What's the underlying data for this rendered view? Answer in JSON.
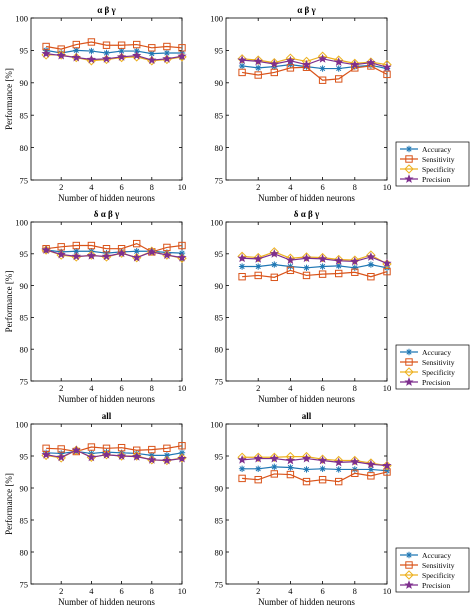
{
  "figure": {
    "colors": {
      "accuracy": "#1f77b4",
      "sensitivity": "#d95319",
      "specificity": "#edb120",
      "precision": "#7e2f8e"
    }
  },
  "chart_data": [
    {
      "type": "line",
      "panel": "left",
      "row": 0,
      "title": "α β γ",
      "xlabel": "Number of hidden neurons",
      "ylabel": "Performance [%]",
      "x": [
        1,
        2,
        3,
        4,
        5,
        6,
        7,
        8,
        9,
        10
      ],
      "xticks": [
        "2",
        "4",
        "6",
        "8",
        "10"
      ],
      "xtick_values": [
        2,
        4,
        6,
        8,
        10
      ],
      "yticks": [
        "75",
        "80",
        "85",
        "90",
        "95",
        "100"
      ],
      "ytick_values": [
        75,
        80,
        85,
        90,
        95,
        100
      ],
      "xlim": [
        0,
        10
      ],
      "ylim": [
        75,
        100
      ],
      "grid": false,
      "legend": false,
      "series": [
        {
          "name": "Accuracy",
          "key": "accuracy",
          "marker": "asterisk",
          "values": [
            95.0,
            94.6,
            95.0,
            94.9,
            94.6,
            94.9,
            94.9,
            94.5,
            94.6,
            94.6
          ]
        },
        {
          "name": "Sensitivity",
          "key": "sensitivity",
          "marker": "square",
          "values": [
            95.6,
            95.2,
            95.9,
            96.3,
            95.8,
            95.8,
            95.9,
            95.4,
            95.6,
            95.4
          ]
        },
        {
          "name": "Specificity",
          "key": "specificity",
          "marker": "diamond",
          "values": [
            94.3,
            94.3,
            93.9,
            93.4,
            93.6,
            93.9,
            94.0,
            93.4,
            93.6,
            94.0
          ]
        },
        {
          "name": "Precision",
          "key": "precision",
          "marker": "star",
          "values": [
            94.5,
            94.2,
            93.9,
            93.6,
            93.7,
            94.0,
            94.2,
            93.5,
            93.7,
            94.1
          ]
        }
      ]
    },
    {
      "type": "line",
      "panel": "right",
      "row": 0,
      "title": "α β γ",
      "xlabel": "Number of hidden neurons",
      "ylabel": "",
      "x": [
        1,
        2,
        3,
        4,
        5,
        6,
        7,
        8,
        9,
        10
      ],
      "xticks": [
        "2",
        "4",
        "6",
        "8",
        "10"
      ],
      "xtick_values": [
        2,
        4,
        6,
        8,
        10
      ],
      "yticks": [
        "75",
        "80",
        "85",
        "90",
        "95",
        "100"
      ],
      "ytick_values": [
        75,
        80,
        85,
        90,
        95,
        100
      ],
      "xlim": [
        0,
        10
      ],
      "ylim": [
        75,
        100
      ],
      "grid": false,
      "legend": true,
      "legend_position": "right",
      "series": [
        {
          "name": "Accuracy",
          "key": "accuracy",
          "marker": "asterisk",
          "values": [
            92.6,
            92.3,
            92.5,
            92.8,
            92.5,
            92.2,
            92.2,
            92.5,
            92.7,
            92.2
          ]
        },
        {
          "name": "Sensitivity",
          "key": "sensitivity",
          "marker": "square",
          "values": [
            91.6,
            91.2,
            91.6,
            92.3,
            92.4,
            90.4,
            90.6,
            92.3,
            92.6,
            91.3
          ]
        },
        {
          "name": "Specificity",
          "key": "specificity",
          "marker": "diamond",
          "values": [
            93.7,
            93.5,
            93.1,
            93.8,
            93.3,
            94.1,
            93.5,
            93.0,
            93.2,
            92.8
          ]
        },
        {
          "name": "Precision",
          "key": "precision",
          "marker": "star",
          "values": [
            93.5,
            93.3,
            92.9,
            93.4,
            92.8,
            93.7,
            93.2,
            92.8,
            93.1,
            92.4
          ]
        }
      ]
    },
    {
      "type": "line",
      "panel": "left",
      "row": 1,
      "title": "δ α β γ",
      "xlabel": "Number of hidden neurons",
      "ylabel": "Performance [%]",
      "x": [
        1,
        2,
        3,
        4,
        5,
        6,
        7,
        8,
        9,
        10
      ],
      "xticks": [
        "2",
        "4",
        "6",
        "8",
        "10"
      ],
      "xtick_values": [
        2,
        4,
        6,
        8,
        10
      ],
      "yticks": [
        "75",
        "80",
        "85",
        "90",
        "95",
        "100"
      ],
      "ytick_values": [
        75,
        80,
        85,
        90,
        95,
        100
      ],
      "xlim": [
        0,
        10
      ],
      "ylim": [
        75,
        100
      ],
      "grid": false,
      "legend": false,
      "series": [
        {
          "name": "Accuracy",
          "key": "accuracy",
          "marker": "asterisk",
          "values": [
            95.6,
            95.3,
            95.4,
            95.4,
            95.1,
            95.3,
            95.4,
            95.4,
            95.2,
            95.1
          ]
        },
        {
          "name": "Sensitivity",
          "key": "sensitivity",
          "marker": "square",
          "values": [
            95.8,
            96.1,
            96.3,
            96.3,
            95.8,
            95.8,
            96.6,
            95.3,
            96.0,
            96.3
          ]
        },
        {
          "name": "Specificity",
          "key": "specificity",
          "marker": "diamond",
          "values": [
            95.6,
            94.8,
            94.5,
            94.8,
            94.5,
            95.1,
            94.4,
            95.4,
            94.8,
            94.3
          ]
        },
        {
          "name": "Precision",
          "key": "precision",
          "marker": "star",
          "values": [
            95.6,
            94.9,
            94.6,
            94.7,
            94.6,
            95.1,
            94.4,
            95.3,
            94.8,
            94.4
          ]
        }
      ]
    },
    {
      "type": "line",
      "panel": "right",
      "row": 1,
      "title": "δ α β γ",
      "xlabel": "Number of hidden neurons",
      "ylabel": "",
      "x": [
        1,
        2,
        3,
        4,
        5,
        6,
        7,
        8,
        9,
        10
      ],
      "xticks": [
        "2",
        "4",
        "6",
        "8",
        "10"
      ],
      "xtick_values": [
        2,
        4,
        6,
        8,
        10
      ],
      "yticks": [
        "75",
        "80",
        "85",
        "90",
        "95",
        "100"
      ],
      "ytick_values": [
        75,
        80,
        85,
        90,
        95,
        100
      ],
      "xlim": [
        0,
        10
      ],
      "ylim": [
        75,
        100
      ],
      "grid": false,
      "legend": true,
      "legend_position": "right",
      "series": [
        {
          "name": "Accuracy",
          "key": "accuracy",
          "marker": "asterisk",
          "values": [
            93.0,
            93.0,
            93.3,
            93.0,
            92.8,
            93.0,
            93.1,
            92.8,
            93.3,
            92.8
          ]
        },
        {
          "name": "Sensitivity",
          "key": "sensitivity",
          "marker": "square",
          "values": [
            91.4,
            91.6,
            91.3,
            92.4,
            91.6,
            91.8,
            91.9,
            92.1,
            91.4,
            92.2
          ]
        },
        {
          "name": "Specificity",
          "key": "specificity",
          "marker": "diamond",
          "values": [
            94.6,
            94.4,
            95.3,
            94.3,
            94.5,
            94.4,
            94.1,
            94.0,
            94.8,
            93.4
          ]
        },
        {
          "name": "Precision",
          "key": "precision",
          "marker": "star",
          "values": [
            94.3,
            94.2,
            95.0,
            94.0,
            94.3,
            94.2,
            93.9,
            93.8,
            94.5,
            93.5
          ]
        }
      ]
    },
    {
      "type": "line",
      "panel": "left",
      "row": 2,
      "title": "all",
      "xlabel": "Number of hidden neurons",
      "ylabel": "Performance [%]",
      "x": [
        1,
        2,
        3,
        4,
        5,
        6,
        7,
        8,
        9,
        10
      ],
      "xticks": [
        "2",
        "4",
        "6",
        "8",
        "10"
      ],
      "xtick_values": [
        2,
        4,
        6,
        8,
        10
      ],
      "yticks": [
        "75",
        "80",
        "85",
        "90",
        "95",
        "100"
      ],
      "ytick_values": [
        75,
        80,
        85,
        90,
        95,
        100
      ],
      "xlim": [
        0,
        10
      ],
      "ylim": [
        75,
        100
      ],
      "grid": false,
      "legend": false,
      "series": [
        {
          "name": "Accuracy",
          "key": "accuracy",
          "marker": "asterisk",
          "values": [
            95.5,
            95.4,
            95.7,
            95.4,
            95.6,
            95.5,
            95.4,
            95.1,
            95.1,
            95.5
          ]
        },
        {
          "name": "Sensitivity",
          "key": "sensitivity",
          "marker": "square",
          "values": [
            96.2,
            96.1,
            95.7,
            96.4,
            96.2,
            96.3,
            95.9,
            96.0,
            96.2,
            96.6
          ]
        },
        {
          "name": "Specificity",
          "key": "specificity",
          "marker": "diamond",
          "values": [
            95.1,
            94.7,
            95.9,
            94.8,
            95.2,
            95.0,
            95.0,
            94.4,
            94.3,
            94.7
          ]
        },
        {
          "name": "Precision",
          "key": "precision",
          "marker": "star",
          "values": [
            95.2,
            94.8,
            95.9,
            94.8,
            95.2,
            95.0,
            94.9,
            94.4,
            94.3,
            94.6
          ]
        }
      ]
    },
    {
      "type": "line",
      "panel": "right",
      "row": 2,
      "title": "all",
      "xlabel": "Number of hidden neurons",
      "ylabel": "",
      "x": [
        1,
        2,
        3,
        4,
        5,
        6,
        7,
        8,
        9,
        10
      ],
      "xticks": [
        "2",
        "4",
        "6",
        "8",
        "10"
      ],
      "xtick_values": [
        2,
        4,
        6,
        8,
        10
      ],
      "yticks": [
        "75",
        "80",
        "85",
        "90",
        "95",
        "100"
      ],
      "ytick_values": [
        75,
        80,
        85,
        90,
        95,
        100
      ],
      "xlim": [
        0,
        10
      ],
      "ylim": [
        75,
        100
      ],
      "grid": false,
      "legend": true,
      "legend_position": "right",
      "series": [
        {
          "name": "Accuracy",
          "key": "accuracy",
          "marker": "asterisk",
          "values": [
            93.0,
            93.0,
            93.3,
            93.2,
            92.9,
            93.0,
            92.9,
            92.9,
            92.9,
            92.7
          ]
        },
        {
          "name": "Sensitivity",
          "key": "sensitivity",
          "marker": "square",
          "values": [
            91.5,
            91.3,
            92.2,
            92.1,
            91.0,
            91.3,
            91.0,
            92.3,
            91.9,
            92.5
          ]
        },
        {
          "name": "Specificity",
          "key": "specificity",
          "marker": "diamond",
          "values": [
            94.8,
            94.8,
            94.8,
            94.9,
            94.9,
            94.5,
            94.3,
            94.3,
            93.9,
            93.5
          ]
        },
        {
          "name": "Precision",
          "key": "precision",
          "marker": "star",
          "values": [
            94.4,
            94.6,
            94.6,
            94.3,
            94.6,
            94.3,
            94.0,
            94.1,
            93.7,
            93.5
          ]
        }
      ]
    }
  ]
}
